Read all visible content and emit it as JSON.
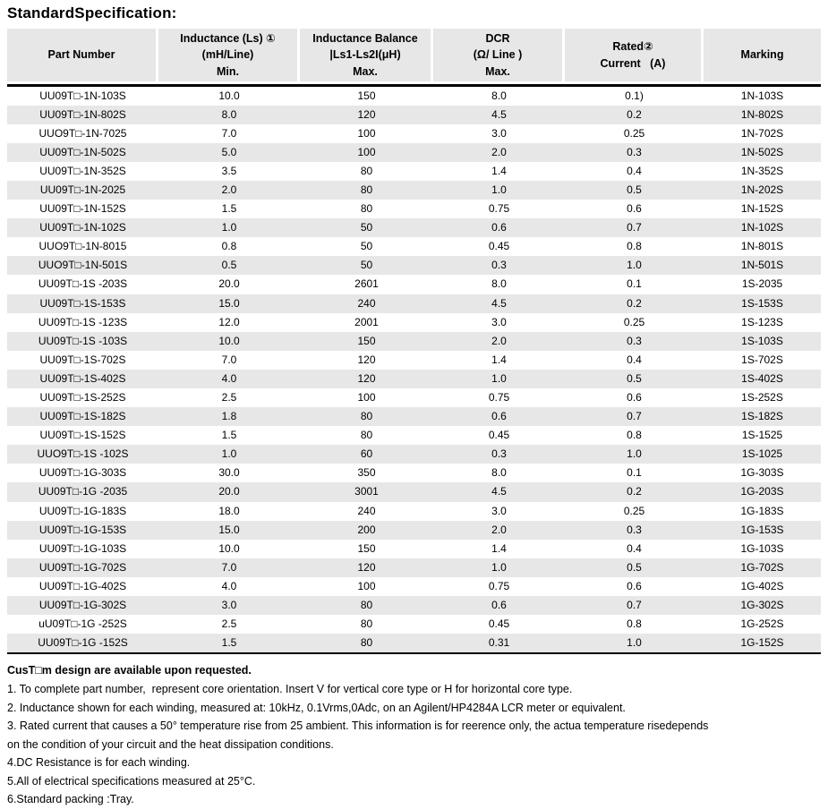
{
  "page": {
    "title": "StandardSpecification:"
  },
  "colors": {
    "header_bg": "#e7e7e7",
    "stripe_bg": "#e7e7e7",
    "divider": "#000000",
    "text": "#000000"
  },
  "table": {
    "columns": [
      {
        "id": "part-number",
        "lines": [
          "Part Number"
        ]
      },
      {
        "id": "inductance-min",
        "lines": [
          "Inductance (Ls) ①",
          "(mH/Line)",
          "Min."
        ]
      },
      {
        "id": "inductance-balance",
        "lines": [
          "Inductance Balance",
          "|Ls1-Ls2I(μH)",
          "Max."
        ]
      },
      {
        "id": "dcr-max",
        "lines": [
          "DCR",
          "(Ω/ Line )",
          "Max."
        ]
      },
      {
        "id": "rated-current",
        "lines": [
          "Rated②",
          "Current   (A)"
        ]
      },
      {
        "id": "marking",
        "lines": [
          "Marking"
        ]
      }
    ],
    "rows": [
      [
        "UU09T□-1N-103S",
        "10.0",
        "150",
        "8.0",
        "0.1)",
        "1N-103S"
      ],
      [
        "UU09T□-1N-802S",
        "8.0",
        "120",
        "4.5",
        "0.2",
        "1N-802S"
      ],
      [
        "UUO9T□-1N-7025",
        "7.0",
        "100",
        "3.0",
        "0.25",
        "1N-702S"
      ],
      [
        "UU09T□-1N-502S",
        "5.0",
        "100",
        "2.0",
        "0.3",
        "1N-502S"
      ],
      [
        "UU09T□-1N-352S",
        "3.5",
        "80",
        "1.4",
        "0.4",
        "1N-352S"
      ],
      [
        "UU09T□-1N-2025",
        "2.0",
        "80",
        "1.0",
        "0.5",
        "1N-202S"
      ],
      [
        "UU09T□-1N-152S",
        "1.5",
        "80",
        "0.75",
        "0.6",
        "1N-152S"
      ],
      [
        "UU09T□-1N-102S",
        "1.0",
        "50",
        "0.6",
        "0.7",
        "1N-102S"
      ],
      [
        "UUO9T□-1N-8015",
        "0.8",
        "50",
        "0.45",
        "0.8",
        "1N-801S"
      ],
      [
        "UUO9T□-1N-501S",
        "0.5",
        "50",
        "0.3",
        "1.0",
        "1N-501S"
      ],
      [
        "UU09T□-1S -203S",
        "20.0",
        "2601",
        "8.0",
        "0.1",
        "1S-2035"
      ],
      [
        "UU09T□-1S-153S",
        "15.0",
        "240",
        "4.5",
        "0.2",
        "1S-153S"
      ],
      [
        "UU09T□-1S -123S",
        "12.0",
        "2001",
        "3.0",
        "0.25",
        "1S-123S"
      ],
      [
        "UU09T□-1S -103S",
        "10.0",
        "150",
        "2.0",
        "0.3",
        "1S-103S"
      ],
      [
        "UU09T□-1S-702S",
        "7.0",
        "120",
        "1.4",
        "0.4",
        "1S-702S"
      ],
      [
        "UU09T□-1S-402S",
        "4.0",
        "120",
        "1.0",
        "0.5",
        "1S-402S"
      ],
      [
        "UU09T□-1S-252S",
        "2.5",
        "100",
        "0.75",
        "0.6",
        "1S-252S"
      ],
      [
        "UU09T□-1S-182S",
        "1.8",
        "80",
        "0.6",
        "0.7",
        "1S-182S"
      ],
      [
        "UU09T□-1S-152S",
        "1.5",
        "80",
        "0.45",
        "0.8",
        "1S-1525"
      ],
      [
        "UUO9T□-1S -102S",
        "1.0",
        "60",
        "0.3",
        "1.0",
        "1S-1025"
      ],
      [
        "UU09T□-1G-303S",
        "30.0",
        "350",
        "8.0",
        "0.1",
        "1G-303S"
      ],
      [
        "UU09T□-1G -2035",
        "20.0",
        "3001",
        "4.5",
        "0.2",
        "1G-203S"
      ],
      [
        "UU09T□-1G-183S",
        "18.0",
        "240",
        "3.0",
        "0.25",
        "1G-183S"
      ],
      [
        "UU09T□-1G-153S",
        "15.0",
        "200",
        "2.0",
        "0.3",
        "1G-153S"
      ],
      [
        "UU09T□-1G-103S",
        "10.0",
        "150",
        "1.4",
        "0.4",
        "1G-103S"
      ],
      [
        "UU09T□-1G-702S",
        "7.0",
        "120",
        "1.0",
        "0.5",
        "1G-702S"
      ],
      [
        "UU09T□-1G-402S",
        "4.0",
        "100",
        "0.75",
        "0.6",
        "1G-402S"
      ],
      [
        "UU09T□-1G-302S",
        "3.0",
        "80",
        "0.6",
        "0.7",
        "1G-302S"
      ],
      [
        "uU09T□-1G -252S",
        "2.5",
        "80",
        "0.45",
        "0.8",
        "1G-252S"
      ],
      [
        "UU09T□-1G -152S",
        "1.5",
        "80",
        "0.31",
        "1.0",
        "1G-152S"
      ]
    ]
  },
  "notes": {
    "bold": "CusT□m design are available upon requested.",
    "lines": [
      "1. To complete part number,  represent core orientation. Insert V for vertical core type or H for horizontal core type.",
      "2. Inductance shown for each winding, measured at: 10kHz, 0.1Vrms,0Adc, on an Agilent/HP4284A LCR meter or equivalent.",
      "3. Rated current that causes a 50° temperature rise from 25 ambient. This information is for reerence only, the actua temperature risedepends",
      "on the condition of your circuit and the heat dissipation conditions.",
      "4.DC Resistance is for each winding.",
      "5.All of electrical specifications measured at 25°C.",
      "6.Standard packing :Tray."
    ]
  }
}
